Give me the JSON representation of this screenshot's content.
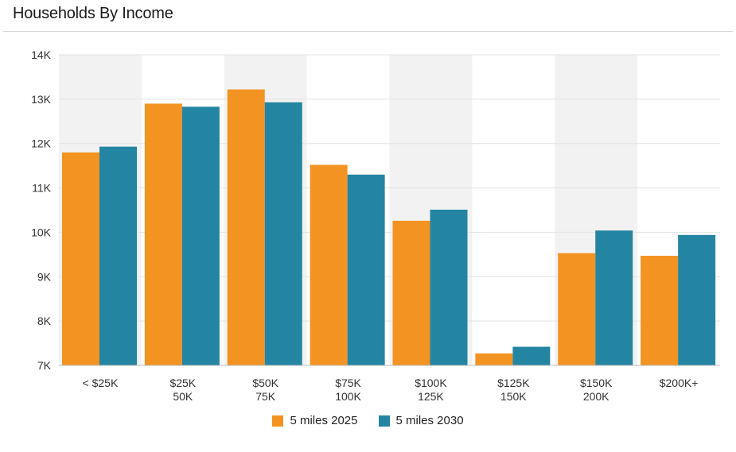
{
  "chart_data": {
    "type": "bar",
    "title": "Households By Income",
    "categories": [
      [
        "< $25K"
      ],
      [
        "$25K",
        "50K"
      ],
      [
        "$50K",
        "75K"
      ],
      [
        "$75K",
        "100K"
      ],
      [
        "$100K",
        "125K"
      ],
      [
        "$125K",
        "150K"
      ],
      [
        "$150K",
        "200K"
      ],
      [
        "$200K+"
      ]
    ],
    "series": [
      {
        "name": "5 miles 2025",
        "color": "#F39322",
        "values": [
          11800,
          12900,
          13220,
          11520,
          10260,
          7270,
          9530,
          9470
        ]
      },
      {
        "name": "5 miles 2030",
        "color": "#2385A2",
        "values": [
          11930,
          12830,
          12930,
          11300,
          10510,
          7420,
          10040,
          9940
        ]
      }
    ],
    "ylim": [
      7000,
      14000
    ],
    "yticks": [
      7000,
      8000,
      9000,
      10000,
      11000,
      12000,
      13000,
      14000
    ],
    "ytick_labels": [
      "7K",
      "8K",
      "9K",
      "10K",
      "11K",
      "12K",
      "13K",
      "14K"
    ],
    "grid": true,
    "band_color": "#F2F2F2",
    "banded_categories": [
      0,
      2,
      4,
      6
    ],
    "legend_position": "bottom"
  }
}
